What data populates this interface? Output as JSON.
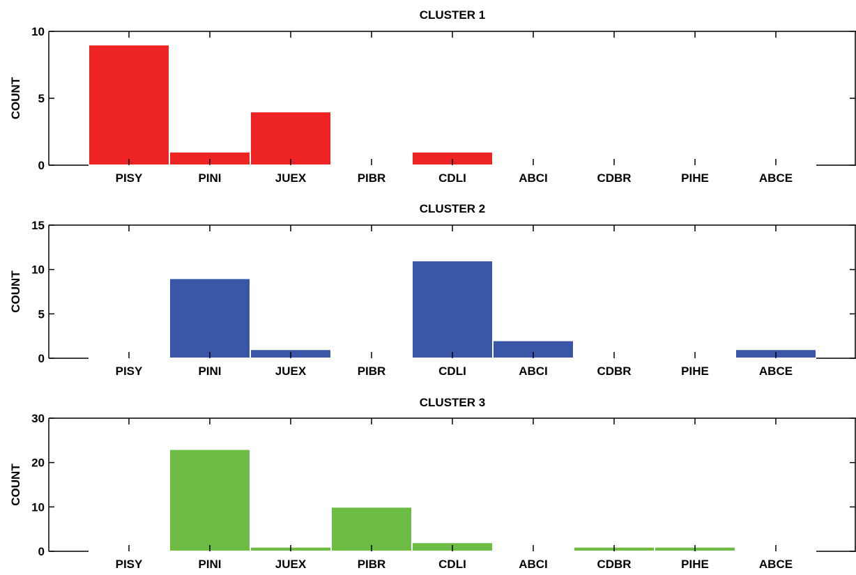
{
  "chart_data": [
    {
      "type": "bar",
      "title": "CLUSTER 1",
      "ylabel": "COUNT",
      "categories": [
        "PISY",
        "PINI",
        "JUEX",
        "PIBR",
        "CDLI",
        "ABCI",
        "CDBR",
        "PIHE",
        "ABCE"
      ],
      "values": [
        9,
        1,
        4,
        0,
        1,
        0,
        0,
        0,
        0
      ],
      "ylim": [
        0,
        10
      ],
      "yticks": [
        0,
        5,
        10
      ],
      "color": "#ee2324",
      "grid": false
    },
    {
      "type": "bar",
      "title": "CLUSTER 2",
      "ylabel": "COUNT",
      "categories": [
        "PISY",
        "PINI",
        "JUEX",
        "PIBR",
        "CDLI",
        "ABCI",
        "CDBR",
        "PIHE",
        "ABCE"
      ],
      "values": [
        0,
        9,
        1,
        0,
        11,
        2,
        0,
        0,
        1
      ],
      "ylim": [
        0,
        15
      ],
      "yticks": [
        0,
        5,
        10,
        15
      ],
      "color": "#3a56a6",
      "grid": false
    },
    {
      "type": "bar",
      "title": "CLUSTER 3",
      "ylabel": "COUNT",
      "categories": [
        "PISY",
        "PINI",
        "JUEX",
        "PIBR",
        "CDLI",
        "ABCI",
        "CDBR",
        "PIHE",
        "ABCE"
      ],
      "values": [
        0,
        23,
        1,
        10,
        2,
        0,
        1,
        1,
        0
      ],
      "ylim": [
        0,
        30
      ],
      "yticks": [
        0,
        10,
        20,
        30
      ],
      "color": "#6dbd45",
      "grid": false
    }
  ]
}
